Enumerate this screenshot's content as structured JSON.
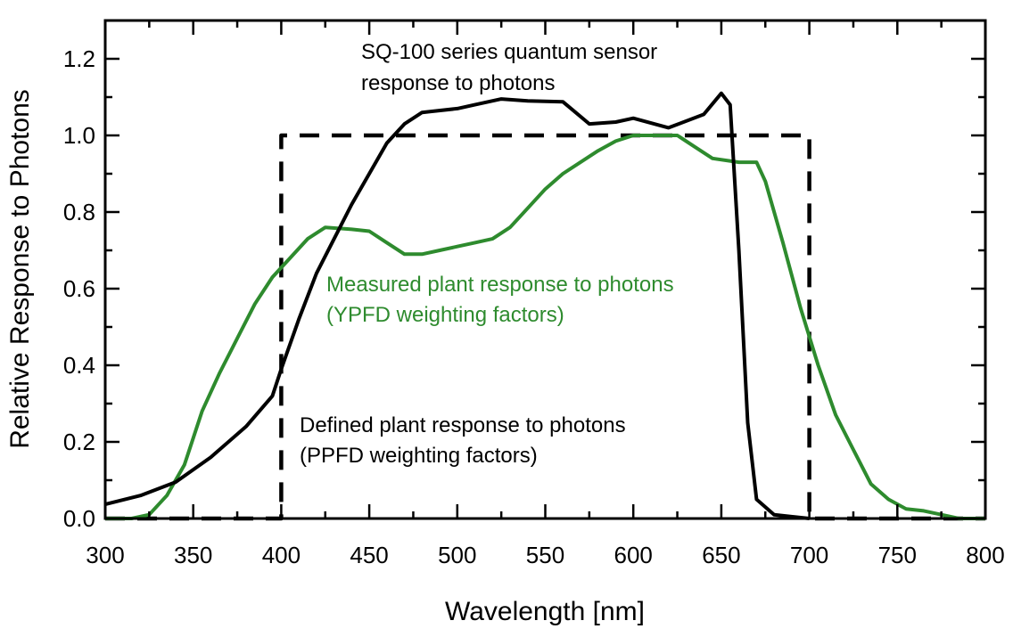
{
  "chart_data": {
    "type": "line",
    "title": "",
    "xlabel": "Wavelength [nm]",
    "ylabel": "Relative Response to Photons",
    "xlim": [
      300,
      800
    ],
    "ylim": [
      0,
      1.3
    ],
    "xticks": [
      300,
      350,
      400,
      450,
      500,
      550,
      600,
      650,
      700,
      750,
      800
    ],
    "yticks": [
      "0.0",
      "0.2",
      "0.4",
      "0.6",
      "0.8",
      "1.0",
      "1.2"
    ],
    "grid": false,
    "series": [
      {
        "name": "SQ-100 series quantum sensor response to photons",
        "color": "#000000",
        "style": "solid",
        "x": [
          300,
          320,
          340,
          360,
          380,
          395,
          400,
          410,
          420,
          440,
          460,
          470,
          480,
          500,
          510,
          525,
          540,
          560,
          575,
          590,
          600,
          620,
          640,
          650,
          655,
          660,
          665,
          670,
          680,
          700
        ],
        "y": [
          0.037,
          0.06,
          0.095,
          0.16,
          0.24,
          0.32,
          0.39,
          0.52,
          0.64,
          0.82,
          0.98,
          1.03,
          1.06,
          1.07,
          1.08,
          1.095,
          1.09,
          1.088,
          1.03,
          1.035,
          1.045,
          1.02,
          1.055,
          1.11,
          1.08,
          0.7,
          0.25,
          0.05,
          0.01,
          0.0
        ]
      },
      {
        "name": "Measured plant response to photons (YPFD weighting factors)",
        "color": "#2e8b2e",
        "style": "solid",
        "x": [
          300,
          315,
          325,
          335,
          345,
          355,
          365,
          375,
          385,
          395,
          405,
          415,
          425,
          440,
          450,
          460,
          470,
          480,
          490,
          500,
          510,
          520,
          530,
          540,
          550,
          560,
          570,
          580,
          590,
          600,
          610,
          625,
          635,
          645,
          660,
          670,
          675,
          685,
          695,
          705,
          715,
          725,
          735,
          745,
          755,
          765,
          775,
          785,
          800
        ],
        "y": [
          0,
          0,
          0.01,
          0.06,
          0.14,
          0.28,
          0.38,
          0.47,
          0.56,
          0.63,
          0.68,
          0.73,
          0.76,
          0.755,
          0.75,
          0.72,
          0.69,
          0.69,
          0.7,
          0.71,
          0.72,
          0.73,
          0.76,
          0.81,
          0.86,
          0.9,
          0.93,
          0.96,
          0.985,
          1.0,
          1.0,
          1.0,
          0.97,
          0.94,
          0.93,
          0.93,
          0.88,
          0.72,
          0.55,
          0.4,
          0.27,
          0.18,
          0.09,
          0.05,
          0.025,
          0.02,
          0.01,
          0.0,
          0.0
        ]
      },
      {
        "name": "Defined plant response to photons (PPFD weighting factors)",
        "color": "#000000",
        "style": "dashed",
        "x": [
          300,
          400,
          400,
          700,
          700,
          800
        ],
        "y": [
          0,
          0,
          1.0,
          1.0,
          0,
          0
        ]
      }
    ],
    "annotations": [
      {
        "lines": [
          "SQ-100 series quantum sensor",
          "response to photons"
        ],
        "color": "#000000"
      },
      {
        "lines": [
          "Measured plant response to photons",
          "(YPFD weighting factors)"
        ],
        "color": "#2e8b2e"
      },
      {
        "lines": [
          "Defined plant response to photons",
          "(PPFD weighting factors)"
        ],
        "color": "#000000"
      }
    ]
  }
}
